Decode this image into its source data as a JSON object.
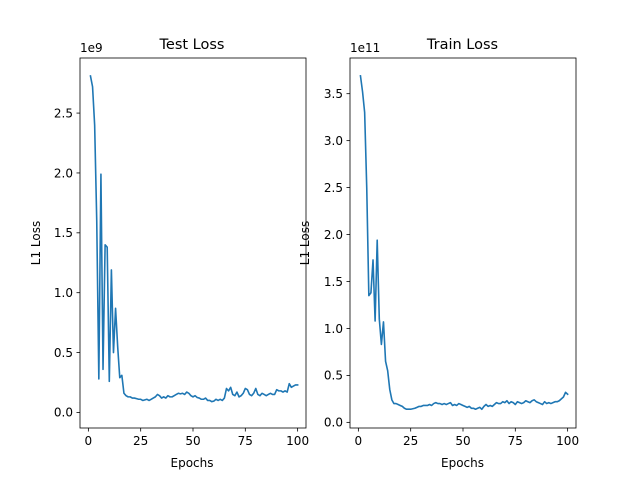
{
  "chart_data": [
    {
      "type": "line",
      "title": "Test Loss",
      "xlabel": "Epochs",
      "ylabel": "L1 Loss",
      "offset_text": "1e9",
      "xlim": [
        -4,
        104
      ],
      "ylim": [
        -0.13,
        2.96
      ],
      "xticks": [
        0,
        25,
        50,
        75,
        100
      ],
      "xtick_labels": [
        "0",
        "25",
        "50",
        "75",
        "100"
      ],
      "yticks": [
        0.0,
        0.5,
        1.0,
        1.5,
        2.0,
        2.5
      ],
      "ytick_labels": [
        "0.0",
        "0.5",
        "1.0",
        "1.5",
        "2.0",
        "2.5"
      ],
      "grid": false,
      "series": [
        {
          "color": "#1f77b4",
          "x": [
            1,
            2,
            3,
            4,
            5,
            6,
            7,
            8,
            9,
            10,
            11,
            12,
            13,
            14,
            15,
            16,
            17,
            18,
            19,
            20,
            21,
            22,
            23,
            24,
            25,
            26,
            27,
            28,
            29,
            30,
            31,
            32,
            33,
            34,
            35,
            36,
            37,
            38,
            39,
            40,
            41,
            42,
            43,
            44,
            45,
            46,
            47,
            48,
            49,
            50,
            51,
            52,
            53,
            54,
            55,
            56,
            57,
            58,
            59,
            60,
            61,
            62,
            63,
            64,
            65,
            66,
            67,
            68,
            69,
            70,
            71,
            72,
            73,
            74,
            75,
            76,
            77,
            78,
            79,
            80,
            81,
            82,
            83,
            84,
            85,
            86,
            87,
            88,
            89,
            90,
            91,
            92,
            93,
            94,
            95,
            96,
            97,
            98,
            99,
            100
          ],
          "values": [
            2.81,
            2.72,
            2.4,
            1.6,
            0.28,
            1.99,
            0.36,
            1.4,
            1.38,
            0.26,
            1.19,
            0.5,
            0.87,
            0.55,
            0.29,
            0.31,
            0.16,
            0.14,
            0.13,
            0.13,
            0.12,
            0.12,
            0.115,
            0.11,
            0.11,
            0.1,
            0.105,
            0.11,
            0.1,
            0.11,
            0.12,
            0.13,
            0.15,
            0.14,
            0.12,
            0.13,
            0.12,
            0.14,
            0.13,
            0.13,
            0.14,
            0.15,
            0.16,
            0.155,
            0.16,
            0.15,
            0.17,
            0.16,
            0.14,
            0.13,
            0.14,
            0.125,
            0.12,
            0.11,
            0.11,
            0.12,
            0.1,
            0.1,
            0.09,
            0.095,
            0.11,
            0.1,
            0.11,
            0.1,
            0.12,
            0.2,
            0.18,
            0.21,
            0.15,
            0.14,
            0.17,
            0.13,
            0.14,
            0.16,
            0.2,
            0.19,
            0.15,
            0.14,
            0.16,
            0.2,
            0.15,
            0.14,
            0.16,
            0.15,
            0.14,
            0.15,
            0.16,
            0.15,
            0.15,
            0.19,
            0.18,
            0.18,
            0.17,
            0.18,
            0.17,
            0.24,
            0.21,
            0.22,
            0.23,
            0.23
          ]
        }
      ]
    },
    {
      "type": "line",
      "title": "Train Loss",
      "xlabel": "Epochs",
      "ylabel": "L1 Loss",
      "offset_text": "1e11",
      "xlim": [
        -4,
        104
      ],
      "ylim": [
        -0.06,
        3.88
      ],
      "xticks": [
        0,
        25,
        50,
        75,
        100
      ],
      "xtick_labels": [
        "0",
        "25",
        "50",
        "75",
        "100"
      ],
      "yticks": [
        0.0,
        0.5,
        1.0,
        1.5,
        2.0,
        2.5,
        3.0,
        3.5
      ],
      "ytick_labels": [
        "0.0",
        "0.5",
        "1.0",
        "1.5",
        "2.0",
        "2.5",
        "3.0",
        "3.5"
      ],
      "grid": false,
      "series": [
        {
          "color": "#1f77b4",
          "x": [
            1,
            2,
            3,
            4,
            5,
            6,
            7,
            8,
            9,
            10,
            11,
            12,
            13,
            14,
            15,
            16,
            17,
            18,
            19,
            20,
            21,
            22,
            23,
            24,
            25,
            26,
            27,
            28,
            29,
            30,
            31,
            32,
            33,
            34,
            35,
            36,
            37,
            38,
            39,
            40,
            41,
            42,
            43,
            44,
            45,
            46,
            47,
            48,
            49,
            50,
            51,
            52,
            53,
            54,
            55,
            56,
            57,
            58,
            59,
            60,
            61,
            62,
            63,
            64,
            65,
            66,
            67,
            68,
            69,
            70,
            71,
            72,
            73,
            74,
            75,
            76,
            77,
            78,
            79,
            80,
            81,
            82,
            83,
            84,
            85,
            86,
            87,
            88,
            89,
            90,
            91,
            92,
            93,
            94,
            95,
            96,
            97,
            98,
            99,
            100
          ],
          "values": [
            3.69,
            3.52,
            3.3,
            2.5,
            1.35,
            1.38,
            1.73,
            1.08,
            1.94,
            1.1,
            0.83,
            1.07,
            0.65,
            0.55,
            0.35,
            0.24,
            0.2,
            0.2,
            0.19,
            0.18,
            0.17,
            0.15,
            0.14,
            0.14,
            0.14,
            0.145,
            0.15,
            0.16,
            0.17,
            0.17,
            0.18,
            0.18,
            0.18,
            0.19,
            0.18,
            0.2,
            0.21,
            0.2,
            0.2,
            0.19,
            0.2,
            0.19,
            0.2,
            0.21,
            0.18,
            0.19,
            0.18,
            0.2,
            0.19,
            0.18,
            0.17,
            0.16,
            0.17,
            0.15,
            0.15,
            0.14,
            0.15,
            0.16,
            0.14,
            0.17,
            0.19,
            0.17,
            0.18,
            0.17,
            0.19,
            0.21,
            0.2,
            0.2,
            0.22,
            0.21,
            0.23,
            0.2,
            0.22,
            0.21,
            0.19,
            0.22,
            0.21,
            0.2,
            0.21,
            0.23,
            0.22,
            0.21,
            0.23,
            0.24,
            0.22,
            0.21,
            0.2,
            0.19,
            0.22,
            0.2,
            0.21,
            0.2,
            0.21,
            0.22,
            0.22,
            0.23,
            0.25,
            0.27,
            0.32,
            0.3
          ]
        }
      ]
    }
  ]
}
